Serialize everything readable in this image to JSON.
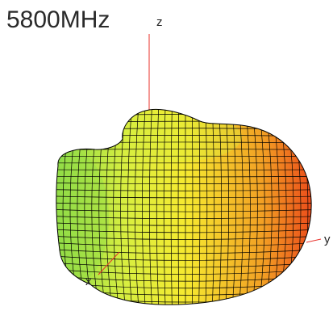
{
  "chart_data": {
    "type": "3d-radiation-pattern",
    "title": "5800MHz",
    "axes": {
      "x_label": "x",
      "y_label": "y",
      "z_label": "z"
    },
    "axis_color": "#e8302a",
    "mesh_color": "#000000",
    "colormap": [
      "#7ed84a",
      "#d8ee40",
      "#f6ea30",
      "#f2a024",
      "#ea3a18"
    ]
  }
}
